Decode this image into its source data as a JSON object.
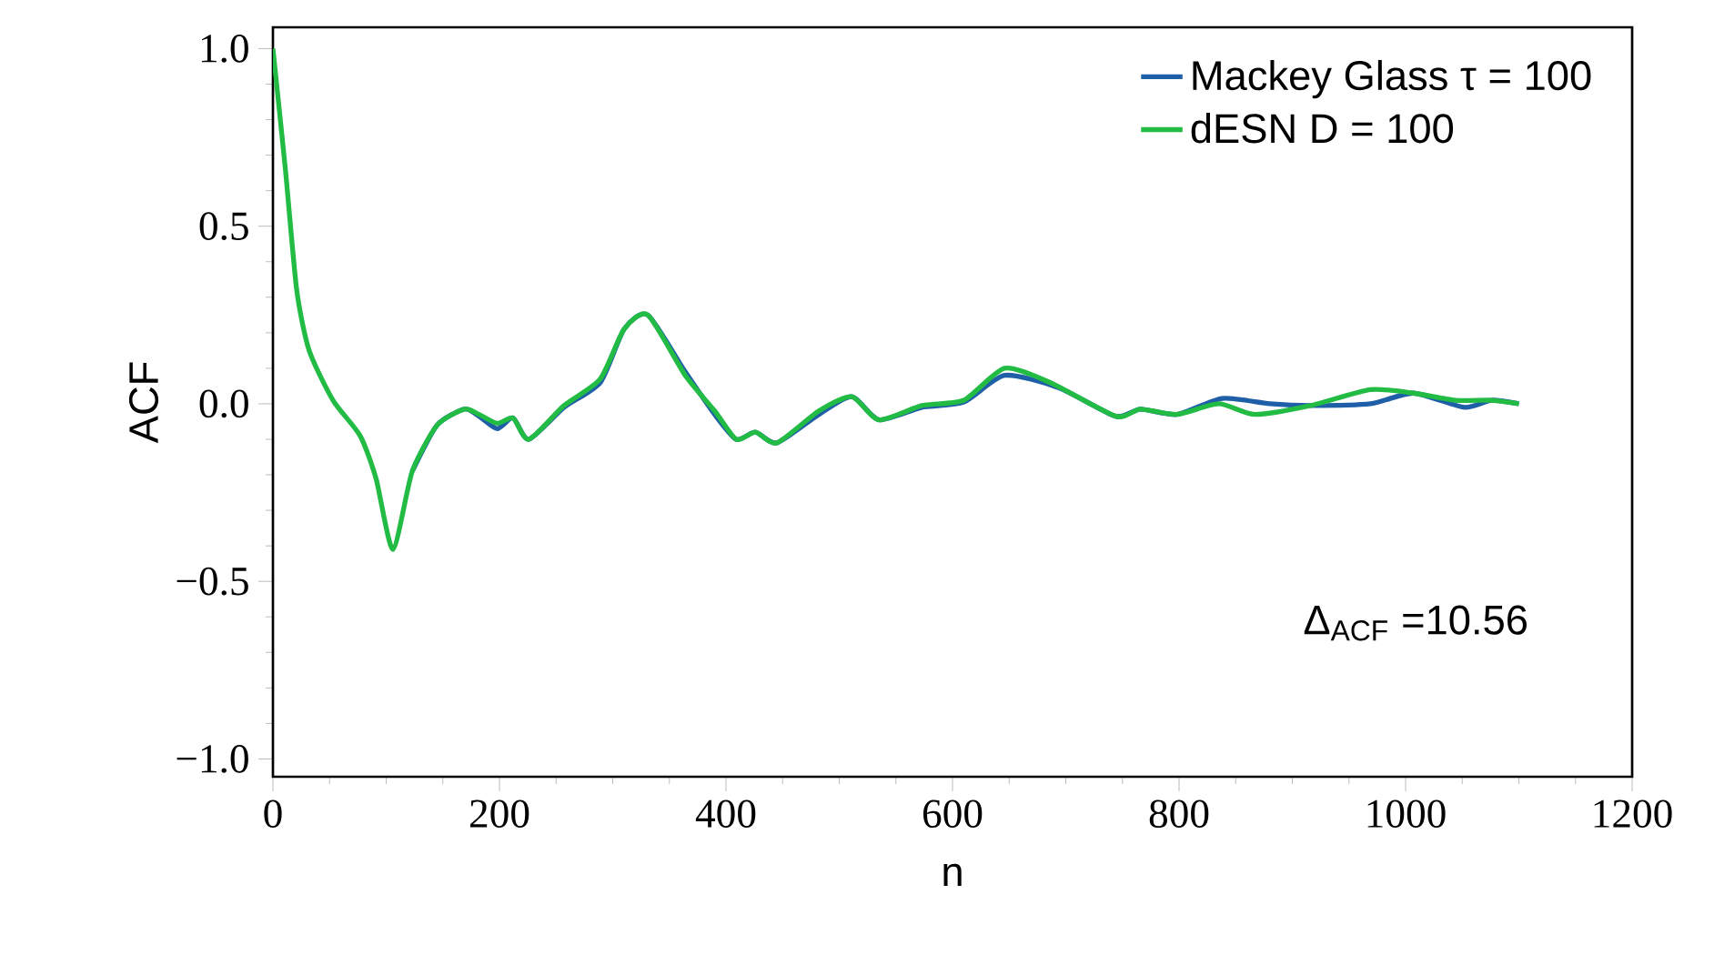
{
  "chart_data": {
    "type": "line",
    "xlabel": "n",
    "ylabel": "ACF",
    "xlim": [
      0,
      1200
    ],
    "ylim": [
      -1.05,
      1.06
    ],
    "xticks": [
      0,
      200,
      400,
      600,
      800,
      1000,
      1200
    ],
    "yticks": [
      {
        "value": -1.0,
        "label": "−1.0"
      },
      {
        "value": -0.5,
        "label": "−0.5"
      },
      {
        "value": 0.0,
        "label": "0.0"
      },
      {
        "value": 0.5,
        "label": "0.5"
      },
      {
        "value": 1.0,
        "label": "1.0"
      }
    ],
    "legend": "top right",
    "grid": false,
    "annotations": [
      {
        "text": "Δ$_{ACF}$ =10.56"
      }
    ],
    "series": [
      {
        "name": "Mackey Glass τ = 100",
        "color": "#1f5fa8",
        "x": [
          123,
          145,
          169,
          182,
          198,
          212,
          226,
          257,
          289,
          310,
          331,
          364,
          390,
          409,
          426,
          445,
          482,
          511,
          535,
          573,
          610,
          646,
          694,
          744,
          766,
          798,
          838,
          880,
          916,
          969,
          1007,
          1052,
          1076,
          1100
        ],
        "values": [
          -0.19,
          -0.06,
          -0.015,
          -0.035,
          -0.07,
          -0.04,
          -0.1,
          -0.01,
          0.06,
          0.21,
          0.25,
          0.09,
          -0.03,
          -0.1,
          -0.08,
          -0.11,
          -0.03,
          0.02,
          -0.045,
          -0.01,
          0.005,
          0.08,
          0.045,
          -0.035,
          -0.015,
          -0.03,
          0.015,
          0.0,
          -0.005,
          0.0,
          0.03,
          -0.01,
          0.01,
          0.0
        ]
      },
      {
        "name": "dESN D = 100",
        "color": "#22bb44",
        "x": [
          0,
          11,
          21,
          32,
          53,
          77,
          91,
          106,
          123,
          145,
          169,
          182,
          198,
          212,
          226,
          257,
          289,
          310,
          331,
          364,
          390,
          409,
          426,
          445,
          482,
          511,
          535,
          573,
          610,
          646,
          686,
          744,
          766,
          798,
          835,
          867,
          916,
          969,
          1007,
          1044,
          1076,
          1100
        ],
        "values": [
          1.0,
          0.66,
          0.32,
          0.15,
          0.01,
          -0.09,
          -0.21,
          -0.41,
          -0.19,
          -0.06,
          -0.015,
          -0.03,
          -0.055,
          -0.04,
          -0.1,
          -0.005,
          0.07,
          0.21,
          0.25,
          0.08,
          -0.02,
          -0.1,
          -0.08,
          -0.11,
          -0.02,
          0.02,
          -0.045,
          -0.005,
          0.01,
          0.1,
          0.06,
          -0.035,
          -0.015,
          -0.03,
          0.0,
          -0.03,
          -0.005,
          0.04,
          0.03,
          0.01,
          0.01,
          0.0
        ]
      }
    ]
  }
}
